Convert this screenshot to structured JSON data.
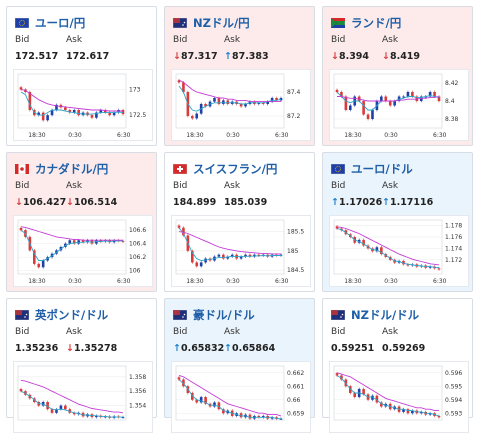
{
  "labels": {
    "bid": "Bid",
    "ask": "Ask"
  },
  "colors": {
    "up_candle": "#1f3fa8",
    "down_candle": "#d93a3a",
    "ma_fast": "#2aa6c9",
    "ma_slow": "#c43bd6",
    "grid": "#eeeeee",
    "title": "#1f5fa8"
  },
  "cards": [
    {
      "pair": "ユーロ/円",
      "flag_icon": "eu-jp-flag-icon",
      "tint": "none",
      "bid": "172.517",
      "ask": "172.617",
      "bid_dir": "none",
      "ask_dir": "none",
      "chart_data": {
        "type": "candlestick",
        "x_ticks": [
          "18:30",
          "0:30",
          "6:30"
        ],
        "y_ticks": [
          "173",
          "172.5"
        ],
        "ylim": [
          172.25,
          173.3
        ],
        "closes": [
          173.0,
          172.95,
          172.6,
          172.5,
          172.55,
          172.4,
          172.5,
          172.6,
          172.7,
          172.65,
          172.6,
          172.55,
          172.6,
          172.5,
          172.55,
          172.5,
          172.45,
          172.55,
          172.6,
          172.55,
          172.5,
          172.55,
          172.6,
          172.52
        ],
        "ma_fast": [
          172.95,
          172.9,
          172.7,
          172.55,
          172.5,
          172.5,
          172.55,
          172.6,
          172.6,
          172.6,
          172.58,
          172.56,
          172.55,
          172.53,
          172.52,
          172.52,
          172.52,
          172.53,
          172.55,
          172.55,
          172.55,
          172.55,
          172.56,
          172.55
        ],
        "ma_slow": [
          173.0,
          172.98,
          172.92,
          172.86,
          172.8,
          172.76,
          172.72,
          172.7,
          172.68,
          172.67,
          172.66,
          172.65,
          172.64,
          172.63,
          172.62,
          172.61,
          172.6,
          172.6,
          172.6,
          172.59,
          172.58,
          172.58,
          172.58,
          172.58
        ]
      }
    },
    {
      "pair": "NZドル/円",
      "flag_icon": "nz-jp-flag-icon",
      "tint": "red",
      "bid": "87.317",
      "ask": "87.383",
      "bid_dir": "down",
      "ask_dir": "up",
      "chart_data": {
        "type": "candlestick",
        "x_ticks": [
          "18:30",
          "0:30",
          "6:30"
        ],
        "y_ticks": [
          "87.4",
          "87.2"
        ],
        "ylim": [
          87.1,
          87.55
        ],
        "closes": [
          87.48,
          87.4,
          87.2,
          87.18,
          87.22,
          87.3,
          87.28,
          87.32,
          87.35,
          87.3,
          87.33,
          87.3,
          87.32,
          87.3,
          87.28,
          87.3,
          87.32,
          87.3,
          87.31,
          87.3,
          87.32,
          87.35,
          87.33,
          87.35
        ],
        "ma_fast": [
          87.45,
          87.4,
          87.3,
          87.25,
          87.24,
          87.26,
          87.28,
          87.3,
          87.31,
          87.31,
          87.31,
          87.31,
          87.31,
          87.31,
          87.3,
          87.3,
          87.31,
          87.31,
          87.31,
          87.31,
          87.32,
          87.33,
          87.33,
          87.34
        ],
        "ma_slow": [
          87.5,
          87.48,
          87.45,
          87.42,
          87.4,
          87.39,
          87.38,
          87.37,
          87.36,
          87.35,
          87.35,
          87.34,
          87.34,
          87.33,
          87.33,
          87.33,
          87.32,
          87.32,
          87.32,
          87.32,
          87.32,
          87.32,
          87.32,
          87.32
        ]
      }
    },
    {
      "pair": "ランド/円",
      "flag_icon": "za-jp-flag-icon",
      "tint": "red",
      "bid": "8.394",
      "ask": "8.419",
      "bid_dir": "down",
      "ask_dir": "down",
      "chart_data": {
        "type": "candlestick",
        "x_ticks": [
          "18:30",
          "0:30",
          "6:30"
        ],
        "y_ticks": [
          "8.42",
          "8.4",
          "8.38"
        ],
        "ylim": [
          8.37,
          8.43
        ],
        "closes": [
          8.41,
          8.405,
          8.39,
          8.395,
          8.405,
          8.4,
          8.385,
          8.38,
          8.39,
          8.4,
          8.405,
          8.4,
          8.395,
          8.4,
          8.405,
          8.405,
          8.41,
          8.405,
          8.4,
          8.405,
          8.405,
          8.41,
          8.405,
          8.4
        ],
        "ma_fast": [
          8.41,
          8.405,
          8.4,
          8.398,
          8.4,
          8.4,
          8.395,
          8.39,
          8.39,
          8.395,
          8.4,
          8.4,
          8.4,
          8.4,
          8.402,
          8.403,
          8.405,
          8.405,
          8.404,
          8.404,
          8.405,
          8.406,
          8.405,
          8.404
        ],
        "ma_slow": [
          8.405,
          8.405,
          8.404,
          8.403,
          8.403,
          8.402,
          8.401,
          8.4,
          8.4,
          8.4,
          8.4,
          8.4,
          8.4,
          8.4,
          8.401,
          8.401,
          8.402,
          8.402,
          8.402,
          8.403,
          8.403,
          8.404,
          8.404,
          8.405
        ]
      }
    },
    {
      "pair": "カナダドル/円",
      "flag_icon": "ca-jp-flag-icon",
      "tint": "red",
      "bid": "106.427",
      "ask": "106.514",
      "bid_dir": "down",
      "ask_dir": "down",
      "chart_data": {
        "type": "candlestick",
        "x_ticks": [
          "18:30",
          "0:30",
          "6:30"
        ],
        "y_ticks": [
          "106.6",
          "106.4",
          "106.2",
          "106"
        ],
        "ylim": [
          105.95,
          106.75
        ],
        "closes": [
          106.6,
          106.5,
          106.3,
          106.1,
          106.05,
          106.15,
          106.2,
          106.25,
          106.3,
          106.35,
          106.4,
          106.45,
          106.4,
          106.45,
          106.42,
          106.45,
          106.4,
          106.45,
          106.43,
          106.45,
          106.42,
          106.45,
          106.44,
          106.43
        ],
        "ma_fast": [
          106.6,
          106.55,
          106.4,
          106.25,
          106.15,
          106.15,
          106.18,
          106.22,
          106.27,
          106.32,
          106.37,
          106.4,
          106.41,
          106.42,
          106.42,
          106.43,
          106.42,
          106.43,
          106.43,
          106.44,
          106.43,
          106.44,
          106.44,
          106.44
        ],
        "ma_slow": [
          106.65,
          106.64,
          106.62,
          106.6,
          106.58,
          106.56,
          106.54,
          106.52,
          106.5,
          106.49,
          106.48,
          106.47,
          106.46,
          106.46,
          106.45,
          106.45,
          106.45,
          106.45,
          106.45,
          106.45,
          106.45,
          106.45,
          106.45,
          106.45
        ]
      }
    },
    {
      "pair": "スイスフラン/円",
      "flag_icon": "ch-jp-flag-icon",
      "tint": "none",
      "bid": "184.899",
      "ask": "185.039",
      "bid_dir": "none",
      "ask_dir": "none",
      "chart_data": {
        "type": "candlestick",
        "x_ticks": [
          "18:30",
          "0:30",
          "6:30"
        ],
        "y_ticks": [
          "185.5",
          "185",
          "184.5"
        ],
        "ylim": [
          184.4,
          185.8
        ],
        "closes": [
          185.6,
          185.4,
          185.0,
          184.7,
          184.6,
          184.7,
          184.8,
          184.75,
          184.85,
          184.9,
          184.8,
          184.85,
          184.9,
          184.8,
          184.85,
          184.9,
          184.85,
          184.9,
          184.88,
          184.9,
          184.85,
          184.9,
          184.88,
          184.9
        ],
        "ma_fast": [
          185.6,
          185.45,
          185.2,
          184.95,
          184.8,
          184.75,
          184.76,
          184.78,
          184.8,
          184.83,
          184.83,
          184.84,
          184.86,
          184.85,
          184.85,
          184.86,
          184.86,
          184.87,
          184.87,
          184.88,
          184.87,
          184.88,
          184.88,
          184.88
        ],
        "ma_slow": [
          185.5,
          185.48,
          185.45,
          185.4,
          185.35,
          185.3,
          185.25,
          185.2,
          185.15,
          185.1,
          185.07,
          185.04,
          185.02,
          185.0,
          184.98,
          184.97,
          184.96,
          184.95,
          184.94,
          184.93,
          184.93,
          184.92,
          184.92,
          184.92
        ]
      }
    },
    {
      "pair": "ユーロ/ドル",
      "flag_icon": "eu-us-flag-icon",
      "tint": "blue",
      "bid": "1.17026",
      "ask": "1.17116",
      "bid_dir": "up",
      "ask_dir": "up",
      "chart_data": {
        "type": "candlestick",
        "x_ticks": [
          "18:30",
          "0:30",
          "6:30"
        ],
        "y_ticks": [
          "1.178",
          "1.176",
          "1.174",
          "1.172"
        ],
        "ylim": [
          1.1695,
          1.179
        ],
        "closes": [
          1.1775,
          1.1772,
          1.1765,
          1.176,
          1.175,
          1.1755,
          1.1745,
          1.174,
          1.1735,
          1.1742,
          1.173,
          1.1725,
          1.172,
          1.1715,
          1.1718,
          1.1712,
          1.171,
          1.1712,
          1.1708,
          1.171,
          1.1706,
          1.1708,
          1.1705,
          1.1703
        ],
        "ma_fast": [
          1.1775,
          1.1773,
          1.1768,
          1.1762,
          1.1755,
          1.1752,
          1.1748,
          1.1743,
          1.1738,
          1.1737,
          1.1733,
          1.1728,
          1.1723,
          1.1718,
          1.1717,
          1.1714,
          1.1712,
          1.1711,
          1.171,
          1.1709,
          1.1708,
          1.1708,
          1.1707,
          1.1706
        ],
        "ma_slow": [
          1.1778,
          1.1777,
          1.1775,
          1.1772,
          1.1769,
          1.1766,
          1.1762,
          1.1758,
          1.1754,
          1.175,
          1.1746,
          1.1742,
          1.1738,
          1.1734,
          1.173,
          1.1727,
          1.1724,
          1.1721,
          1.1719,
          1.1717,
          1.1715,
          1.1713,
          1.1712,
          1.1711
        ]
      }
    },
    {
      "pair": "英ポンド/ドル",
      "flag_icon": "gb-us-flag-icon",
      "tint": "none",
      "bid": "1.35236",
      "ask": "1.35278",
      "bid_dir": "none",
      "ask_dir": "down",
      "chart_data": {
        "type": "candlestick",
        "x_ticks": [],
        "y_ticks": [
          "1.358",
          "1.356",
          "1.354"
        ],
        "ylim": [
          1.352,
          1.3595
        ],
        "closes": [
          1.356,
          1.3555,
          1.355,
          1.3545,
          1.354,
          1.3545,
          1.3535,
          1.353,
          1.3535,
          1.354,
          1.3535,
          1.353,
          1.3528,
          1.353,
          1.3525,
          1.3528,
          1.3524,
          1.3526,
          1.3524,
          1.3525,
          1.3523,
          1.3525,
          1.3524,
          1.3524
        ],
        "ma_fast": [
          1.356,
          1.3557,
          1.3553,
          1.3548,
          1.3543,
          1.3542,
          1.3539,
          1.3535,
          1.3534,
          1.3535,
          1.3534,
          1.3532,
          1.353,
          1.3529,
          1.3527,
          1.3527,
          1.3526,
          1.3526,
          1.3525,
          1.3525,
          1.3524,
          1.3524,
          1.3524,
          1.3524
        ],
        "ma_slow": [
          1.3575,
          1.3574,
          1.3572,
          1.357,
          1.3568,
          1.3566,
          1.3563,
          1.356,
          1.3557,
          1.3554,
          1.3551,
          1.3548,
          1.3545,
          1.3542,
          1.354,
          1.3538,
          1.3536,
          1.3535,
          1.3534,
          1.3533,
          1.3532,
          1.3531,
          1.3531,
          1.353
        ]
      }
    },
    {
      "pair": "豪ドル/ドル",
      "flag_icon": "au-us-flag-icon",
      "tint": "blue",
      "bid": "0.65832",
      "ask": "0.65864",
      "bid_dir": "up",
      "ask_dir": "up",
      "chart_data": {
        "type": "candlestick",
        "x_ticks": [],
        "y_ticks": [
          "0.662",
          "0.661",
          "0.66",
          "0.659"
        ],
        "ylim": [
          0.6585,
          0.6625
        ],
        "closes": [
          0.6615,
          0.661,
          0.6605,
          0.66,
          0.6598,
          0.6602,
          0.6597,
          0.6595,
          0.6598,
          0.6593,
          0.659,
          0.6592,
          0.6588,
          0.659,
          0.6587,
          0.6589,
          0.6586,
          0.6588,
          0.6587,
          0.6588,
          0.6586,
          0.6587,
          0.6586,
          0.6586
        ],
        "ma_fast": [
          0.6615,
          0.6612,
          0.6608,
          0.6603,
          0.66,
          0.6599,
          0.6598,
          0.6596,
          0.6596,
          0.6595,
          0.6592,
          0.6591,
          0.659,
          0.6589,
          0.6588,
          0.6588,
          0.6587,
          0.6587,
          0.6587,
          0.6587,
          0.6587,
          0.6587,
          0.6586,
          0.6586
        ],
        "ma_slow": [
          0.6618,
          0.6617,
          0.6615,
          0.6613,
          0.6611,
          0.6609,
          0.6607,
          0.6605,
          0.6603,
          0.6601,
          0.6599,
          0.6597,
          0.6596,
          0.6595,
          0.6594,
          0.6593,
          0.6592,
          0.6591,
          0.659,
          0.659,
          0.6589,
          0.6589,
          0.6589,
          0.6588
        ]
      }
    },
    {
      "pair": "NZドル/ドル",
      "flag_icon": "nz-us-flag-icon",
      "tint": "none",
      "bid": "0.59251",
      "ask": "0.59269",
      "bid_dir": "none",
      "ask_dir": "none",
      "chart_data": {
        "type": "candlestick",
        "x_ticks": [],
        "y_ticks": [
          "0.596",
          "0.595",
          "0.594",
          "0.593"
        ],
        "ylim": [
          0.5925,
          0.5965
        ],
        "closes": [
          0.5958,
          0.5955,
          0.595,
          0.5945,
          0.5942,
          0.5948,
          0.5944,
          0.594,
          0.5943,
          0.5938,
          0.5935,
          0.5937,
          0.5933,
          0.5935,
          0.5931,
          0.5933,
          0.593,
          0.5932,
          0.593,
          0.5931,
          0.5929,
          0.593,
          0.5928,
          0.5927
        ],
        "ma_fast": [
          0.5958,
          0.5956,
          0.5952,
          0.5948,
          0.5945,
          0.5945,
          0.5944,
          0.5942,
          0.5942,
          0.594,
          0.5937,
          0.5936,
          0.5935,
          0.5934,
          0.5933,
          0.5933,
          0.5932,
          0.5932,
          0.5931,
          0.5931,
          0.593,
          0.593,
          0.5929,
          0.5928
        ],
        "ma_slow": [
          0.596,
          0.5959,
          0.5958,
          0.5957,
          0.5955,
          0.5953,
          0.5951,
          0.5949,
          0.5947,
          0.5945,
          0.5943,
          0.5941,
          0.594,
          0.5939,
          0.5938,
          0.5937,
          0.5936,
          0.5935,
          0.5934,
          0.5934,
          0.5933,
          0.5933,
          0.5932,
          0.5932
        ]
      }
    }
  ]
}
